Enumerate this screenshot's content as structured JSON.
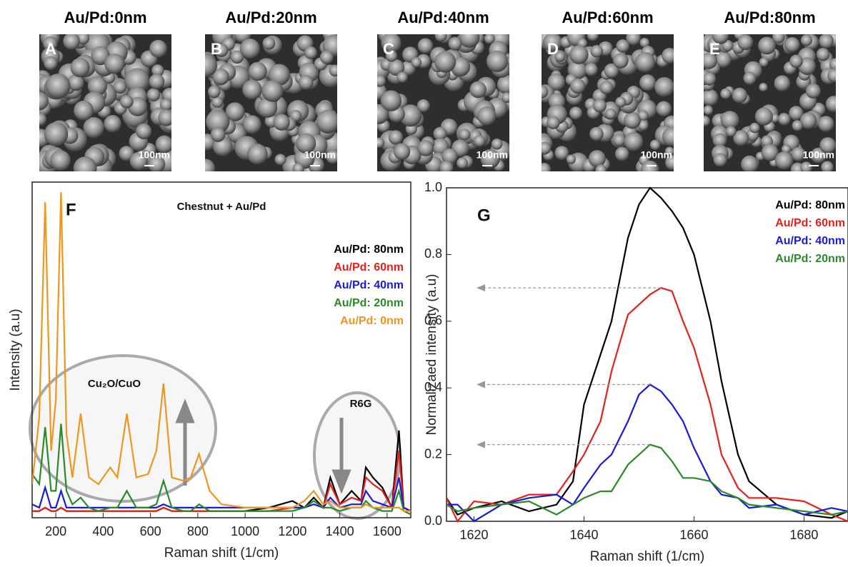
{
  "images": [
    {
      "title": "Au/Pd:0nm",
      "label": "A",
      "scale": "100nm"
    },
    {
      "title": "Au/Pd:20nm",
      "label": "B",
      "scale": "100nm"
    },
    {
      "title": "Au/Pd:40nm",
      "label": "C",
      "scale": "100nm"
    },
    {
      "title": "Au/Pd:60nm",
      "label": "D",
      "scale": "100nm"
    },
    {
      "title": "Au/Pd:80nm",
      "label": "E",
      "scale": "100nm"
    }
  ],
  "chart_data": [
    {
      "type": "line",
      "panel": "F",
      "title": "Chestnut + Au/Pd",
      "x_label": "Raman shift (1/cm)",
      "y_label": "Intensity (a.u)",
      "annotations": [
        "Cu₂O/CuO",
        "R6G"
      ],
      "legend": "upper right",
      "xlim": [
        100,
        1700
      ],
      "xticks": [
        200,
        400,
        600,
        800,
        1000,
        1200,
        1400,
        1600
      ],
      "ylim": [
        0,
        100
      ],
      "x": [
        100,
        130,
        155,
        180,
        200,
        222,
        245,
        270,
        305,
        340,
        380,
        430,
        460,
        500,
        540,
        590,
        625,
        655,
        690,
        740,
        770,
        805,
        850,
        900,
        1000,
        1100,
        1200,
        1250,
        1290,
        1330,
        1360,
        1400,
        1450,
        1490,
        1510,
        1540,
        1580,
        1620,
        1650,
        1670,
        1700
      ],
      "series": [
        {
          "name": "Au/Pd: 80nm",
          "color": "#000000",
          "values": [
            2,
            2,
            3,
            2,
            2,
            3,
            2,
            2,
            2,
            2,
            2,
            2,
            2,
            2,
            2,
            2,
            2,
            3,
            2,
            2,
            2,
            2,
            2,
            2,
            2,
            3,
            5,
            3,
            6,
            3,
            12,
            4,
            8,
            5,
            15,
            12,
            9,
            3,
            26,
            3,
            2
          ]
        },
        {
          "name": "Au/Pd: 60nm",
          "color": "#e8201c",
          "values": [
            2,
            2,
            3,
            2,
            2,
            3,
            2,
            2,
            2,
            2,
            2,
            2,
            2,
            2,
            2,
            2,
            2,
            3,
            2,
            2,
            2,
            2,
            2,
            2,
            2,
            2,
            3,
            3,
            5,
            3,
            10,
            4,
            6,
            5,
            12,
            10,
            8,
            3,
            20,
            3,
            2
          ]
        },
        {
          "name": "Au/Pd: 40nm",
          "color": "#1a1adc",
          "values": [
            4,
            3,
            9,
            3,
            3,
            8,
            3,
            3,
            3,
            3,
            3,
            3,
            3,
            3,
            3,
            3,
            3,
            4,
            3,
            3,
            3,
            3,
            3,
            3,
            3,
            3,
            3,
            3,
            4,
            3,
            6,
            3,
            4,
            4,
            8,
            5,
            4,
            3,
            12,
            3,
            2
          ]
        },
        {
          "name": "Au/Pd: 20nm",
          "color": "#2a8a2a",
          "values": [
            13,
            10,
            27,
            8,
            8,
            28,
            8,
            4,
            6,
            3,
            2,
            3,
            3,
            8,
            3,
            3,
            4,
            11,
            3,
            2,
            2,
            4,
            2,
            2,
            2,
            2,
            2,
            3,
            5,
            3,
            3,
            2,
            3,
            3,
            5,
            3,
            2,
            2,
            8,
            2,
            1
          ]
        },
        {
          "name": "Au/Pd: 0nm",
          "color": "#f0961e",
          "values": [
            10,
            30,
            94,
            20,
            35,
            97,
            25,
            12,
            31,
            12,
            10,
            15,
            12,
            31,
            12,
            13,
            20,
            40,
            12,
            11,
            12,
            19,
            8,
            4,
            3,
            3,
            3,
            5,
            8,
            4,
            5,
            3,
            3,
            3,
            4,
            3,
            3,
            3,
            3,
            2,
            2
          ]
        }
      ]
    },
    {
      "type": "line",
      "panel": "G",
      "x_label": "Raman shift (1/cm)",
      "y_label": "Normalizaed intensity (a.u)",
      "legend": "upper right",
      "xlim": [
        1615,
        1688
      ],
      "xticks": [
        1620,
        1640,
        1660,
        1680
      ],
      "ylim": [
        0,
        1
      ],
      "yticks": [
        {
          "value": 0,
          "label": "0.0"
        },
        0.2,
        0.4,
        0.6,
        0.8,
        {
          "value": 1,
          "label": "1.0"
        }
      ],
      "x": [
        1615,
        1617,
        1620,
        1625,
        1630,
        1635,
        1638,
        1640,
        1643,
        1645,
        1648,
        1650,
        1652,
        1654,
        1656,
        1658,
        1660,
        1663,
        1665,
        1668,
        1670,
        1675,
        1680,
        1685,
        1688
      ],
      "series": [
        {
          "name": "Au/Pd: 80nm",
          "color": "#000000",
          "values": [
            0.07,
            0.02,
            0.04,
            0.06,
            0.03,
            0.05,
            0.12,
            0.35,
            0.5,
            0.6,
            0.85,
            0.95,
            1.0,
            0.97,
            0.93,
            0.88,
            0.8,
            0.6,
            0.42,
            0.2,
            0.12,
            0.05,
            0.02,
            0.01,
            0.03
          ]
        },
        {
          "name": "Au/Pd: 60nm",
          "color": "#e8201c",
          "values": [
            0.07,
            0.0,
            0.06,
            0.05,
            0.08,
            0.08,
            0.15,
            0.2,
            0.3,
            0.45,
            0.62,
            0.65,
            0.68,
            0.7,
            0.69,
            0.6,
            0.52,
            0.35,
            0.2,
            0.1,
            0.07,
            0.07,
            0.06,
            0.02,
            0.0
          ]
        },
        {
          "name": "Au/Pd: 40nm",
          "color": "#1a1adc",
          "values": [
            0.05,
            0.05,
            0.0,
            0.05,
            0.07,
            0.08,
            0.05,
            0.1,
            0.17,
            0.2,
            0.3,
            0.38,
            0.41,
            0.39,
            0.35,
            0.3,
            0.22,
            0.12,
            0.08,
            0.07,
            0.04,
            0.05,
            0.02,
            0.04,
            0.03
          ]
        },
        {
          "name": "Au/Pd: 20nm",
          "color": "#2a8a2a",
          "values": [
            0.05,
            0.03,
            0.04,
            0.05,
            0.06,
            0.02,
            0.05,
            0.07,
            0.09,
            0.09,
            0.17,
            0.2,
            0.23,
            0.22,
            0.18,
            0.13,
            0.13,
            0.12,
            0.09,
            0.07,
            0.05,
            0.04,
            0.03,
            0.02,
            0.03
          ]
        }
      ]
    }
  ]
}
